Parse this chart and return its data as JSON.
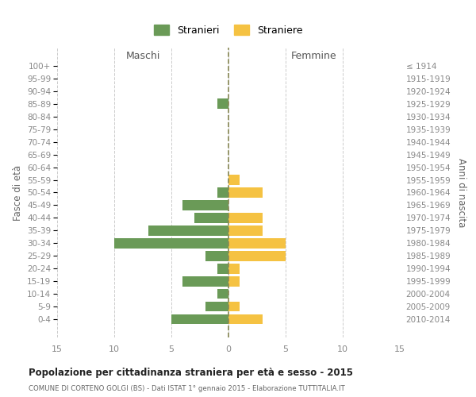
{
  "age_groups": [
    "100+",
    "95-99",
    "90-94",
    "85-89",
    "80-84",
    "75-79",
    "70-74",
    "65-69",
    "60-64",
    "55-59",
    "50-54",
    "45-49",
    "40-44",
    "35-39",
    "30-34",
    "25-29",
    "20-24",
    "15-19",
    "10-14",
    "5-9",
    "0-4"
  ],
  "birth_years": [
    "≤ 1914",
    "1915-1919",
    "1920-1924",
    "1925-1929",
    "1930-1934",
    "1935-1939",
    "1940-1944",
    "1945-1949",
    "1950-1954",
    "1955-1959",
    "1960-1964",
    "1965-1969",
    "1970-1974",
    "1975-1979",
    "1980-1984",
    "1985-1989",
    "1990-1994",
    "1995-1999",
    "2000-2004",
    "2005-2009",
    "2010-2014"
  ],
  "males": [
    0,
    0,
    0,
    1,
    0,
    0,
    0,
    0,
    0,
    0,
    1,
    4,
    3,
    7,
    10,
    2,
    1,
    4,
    1,
    2,
    5
  ],
  "females": [
    0,
    0,
    0,
    0,
    0,
    0,
    0,
    0,
    0,
    1,
    3,
    0,
    3,
    3,
    5,
    5,
    1,
    1,
    0,
    1,
    3
  ],
  "male_color": "#6a9a57",
  "female_color": "#f5c242",
  "male_label": "Stranieri",
  "female_label": "Straniere",
  "title": "Popolazione per cittadinanza straniera per età e sesso - 2015",
  "subtitle": "COMUNE DI CORTENO GOLGI (BS) - Dati ISTAT 1° gennaio 2015 - Elaborazione TUTTITALIA.IT",
  "xlabel_left": "Maschi",
  "xlabel_right": "Femmine",
  "ylabel_left": "Fasce di età",
  "ylabel_right": "Anni di nascita",
  "xlim": 15,
  "background_color": "#ffffff",
  "grid_color": "#cccccc",
  "axis_label_color": "#666666",
  "tick_label_color": "#888888"
}
